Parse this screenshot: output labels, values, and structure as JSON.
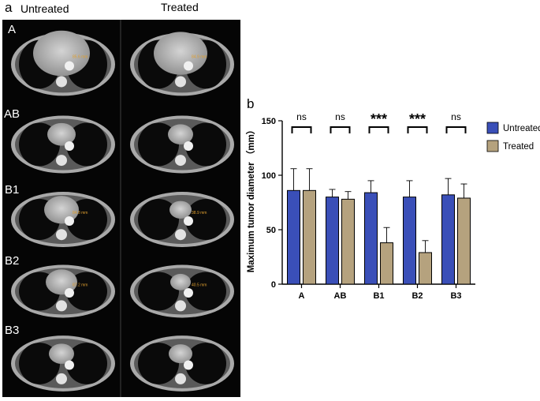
{
  "panel_a": {
    "letter": "a",
    "col_untreated": "Untreated",
    "col_treated": "Treated",
    "rows": [
      {
        "label": "A",
        "m_untreated": "85.6 mm",
        "m_treated": "84.9 mm"
      },
      {
        "label": "AB",
        "m_untreated": "",
        "m_treated": ""
      },
      {
        "label": "B1",
        "m_untreated": "84.8 mm",
        "m_treated": "38.9 mm"
      },
      {
        "label": "B2",
        "m_untreated": "87.2 mm",
        "m_treated": "40.5 mm"
      },
      {
        "label": "B3",
        "m_untreated": "",
        "m_treated": ""
      }
    ]
  },
  "panel_b": {
    "letter": "b"
  },
  "chart_data": {
    "type": "bar",
    "title": "",
    "xlabel": "",
    "ylabel": "Maximum tumor diameter （mm）",
    "ylim": [
      0,
      150
    ],
    "yticks": [
      0,
      50,
      100,
      150
    ],
    "categories": [
      "A",
      "AB",
      "B1",
      "B2",
      "B3"
    ],
    "series": [
      {
        "name": "Untreated",
        "color": "#3a4fb8",
        "values": [
          86,
          80,
          84,
          80,
          82
        ],
        "errors": [
          20,
          7,
          11,
          15,
          15
        ]
      },
      {
        "name": "Treated",
        "color": "#b5a27e",
        "values": [
          86,
          78,
          38,
          29,
          79
        ],
        "errors": [
          20,
          7,
          14,
          11,
          13
        ]
      }
    ],
    "significance": [
      "ns",
      "ns",
      "***",
      "***",
      "ns"
    ],
    "legend": "right"
  }
}
